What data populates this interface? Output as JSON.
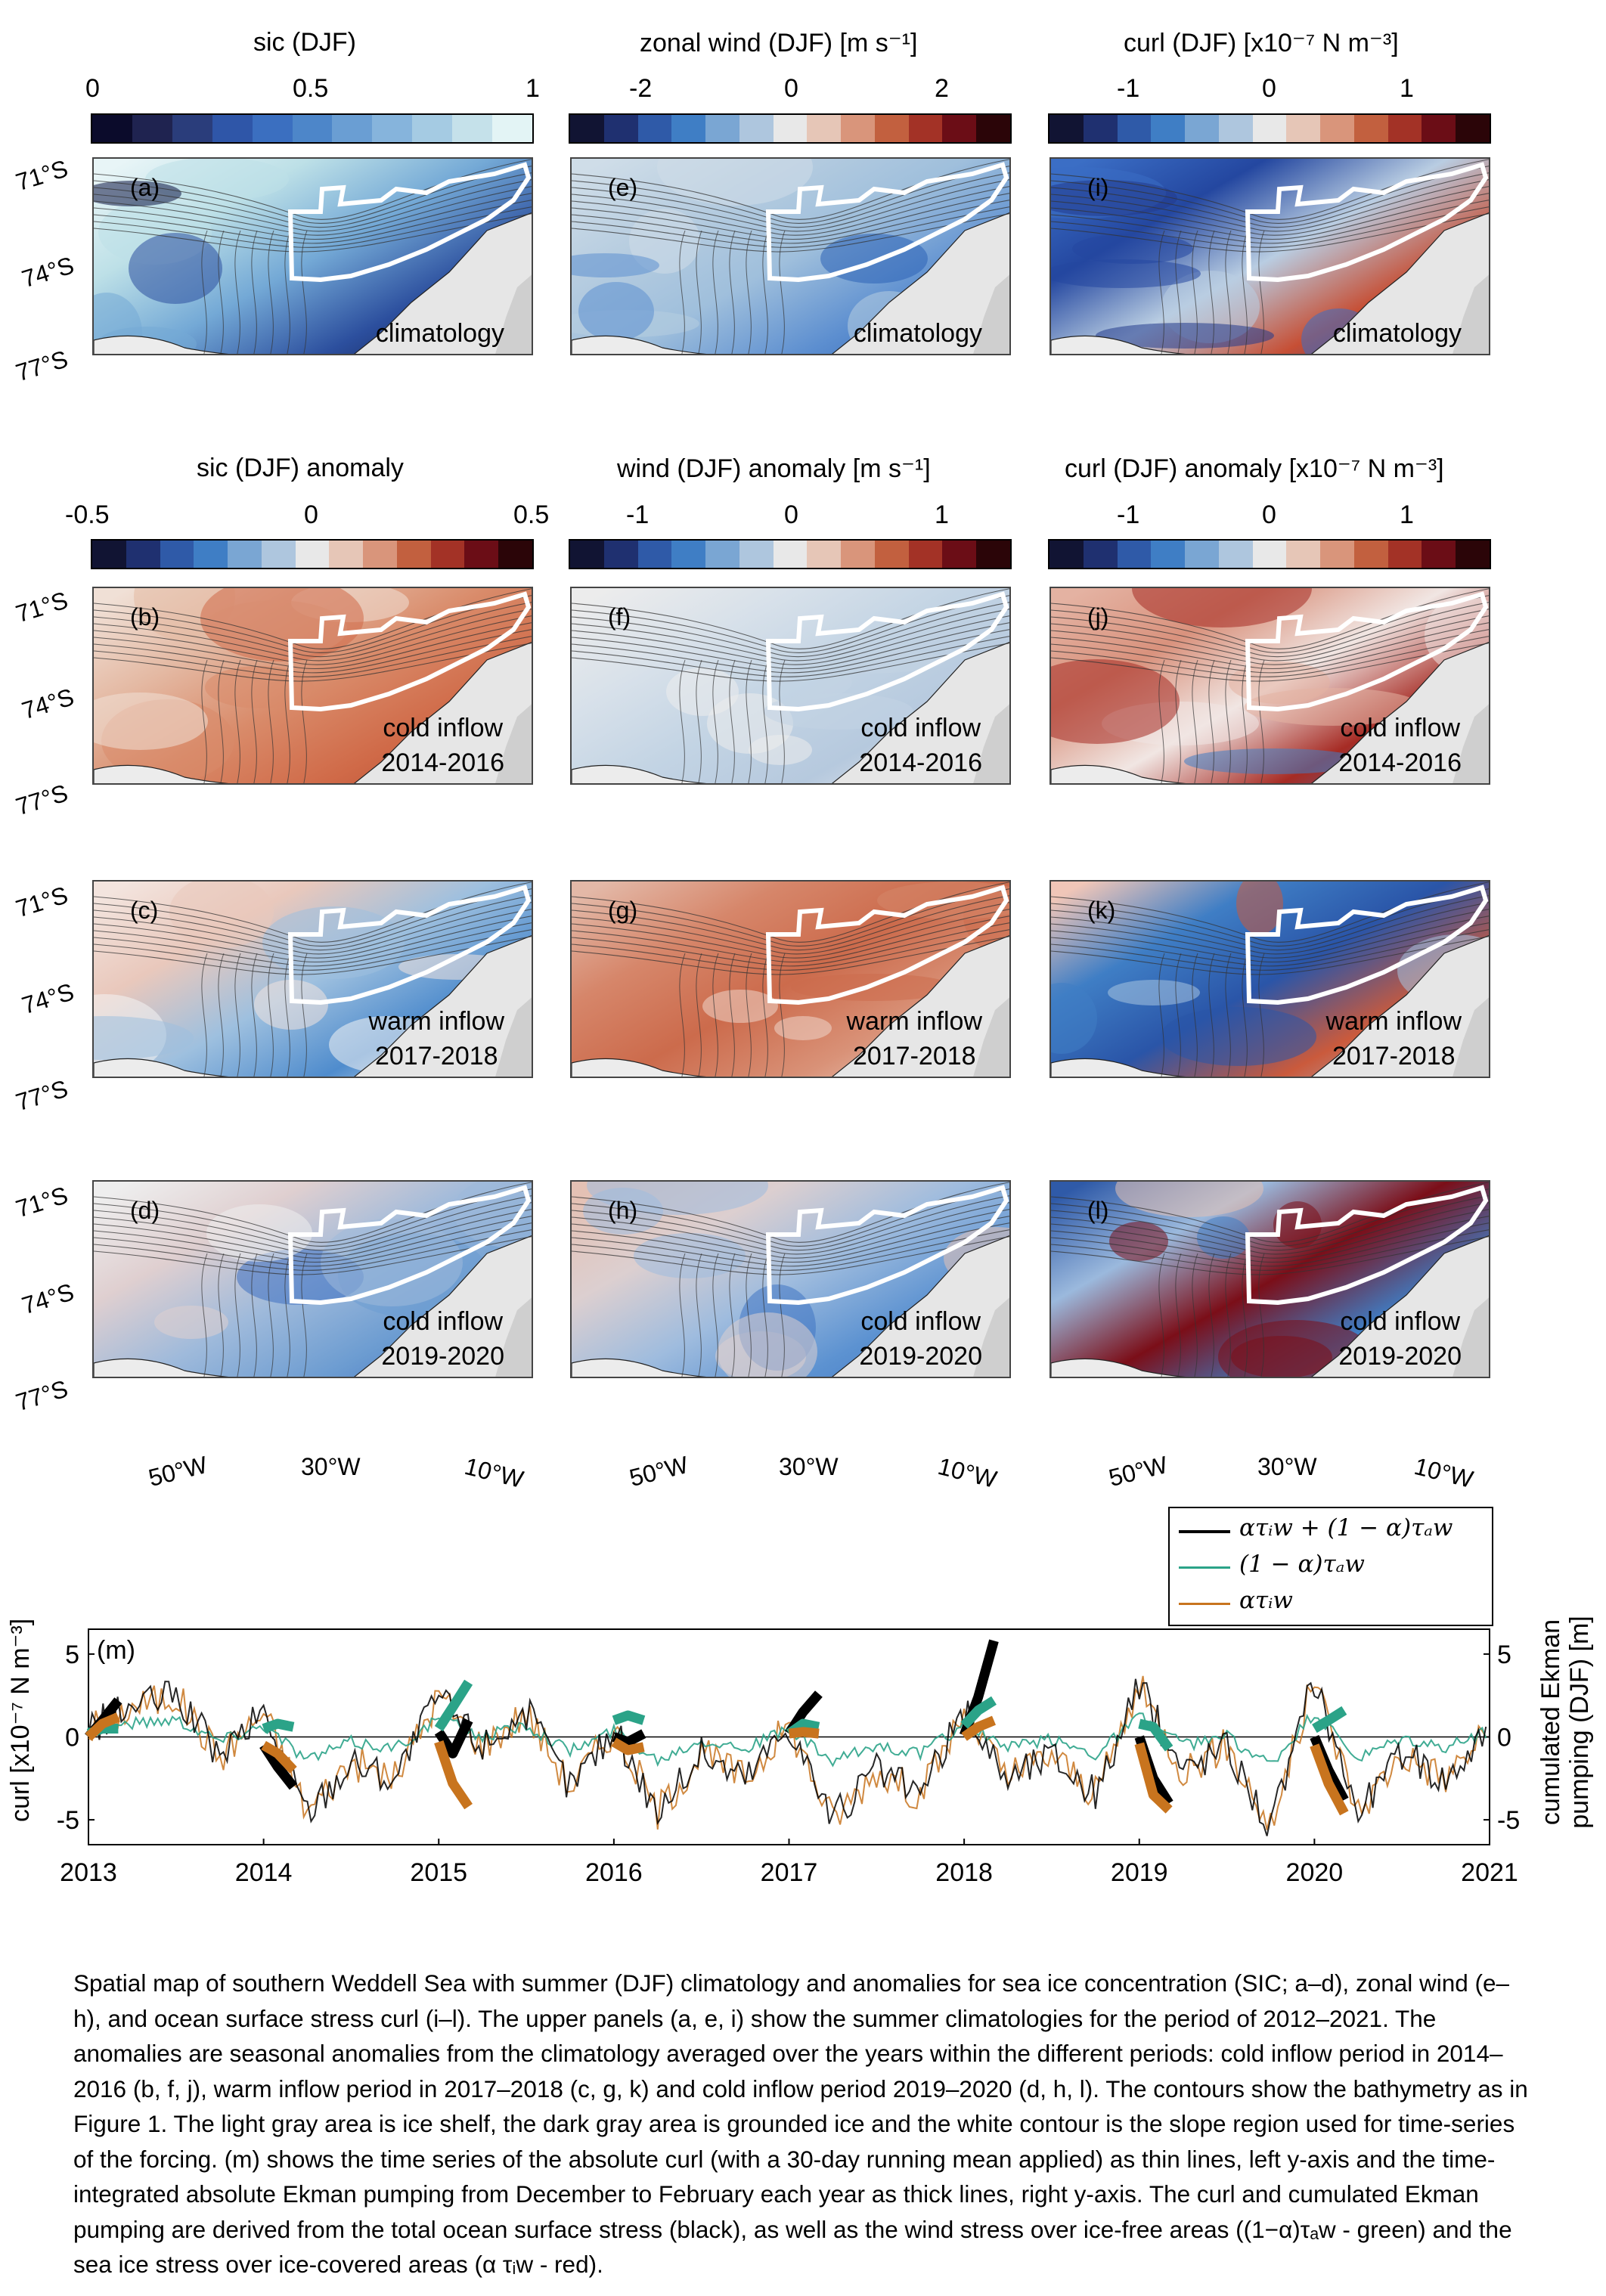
{
  "columns": [
    {
      "clim_title": "sic (DJF)",
      "clim_ticks": [
        "0",
        "0.5",
        "1"
      ],
      "anom_title": "sic (DJF) anomaly",
      "anom_ticks": [
        "-0.5",
        "0",
        "0.5"
      ]
    },
    {
      "clim_title": "zonal wind (DJF) [m s⁻¹]",
      "clim_ticks": [
        "-2",
        "0",
        "2"
      ],
      "anom_title": "wind (DJF) anomaly [m s⁻¹]",
      "anom_ticks": [
        "-1",
        "0",
        "1"
      ]
    },
    {
      "clim_title": "curl (DJF) [x10⁻⁷ N m⁻³]",
      "clim_ticks": [
        "-1",
        "0",
        "1"
      ],
      "anom_title": "curl (DJF) anomaly [x10⁻⁷ N m⁻³]",
      "anom_ticks": [
        "-1",
        "0",
        "1"
      ]
    }
  ],
  "colormaps": {
    "sic": [
      "#0b0b2b",
      "#1f2350",
      "#2a3d7b",
      "#2f56a8",
      "#3b6fc0",
      "#4d86c9",
      "#6a9ed3",
      "#86b4dc",
      "#a5cbe3",
      "#c5e1ea",
      "#e3f4f5"
    ],
    "diverging": [
      "#111433",
      "#1f3070",
      "#2f5aa8",
      "#3f7ec5",
      "#7aa6d3",
      "#aec6de",
      "#e8e8e8",
      "#e6c6b7",
      "#d9957b",
      "#c2603f",
      "#a33226",
      "#6b0d16",
      "#2b0508"
    ]
  },
  "panels": [
    [
      "(a)",
      "(b)",
      "(c)",
      "(d)"
    ],
    [
      "(e)",
      "(f)",
      "(g)",
      "(h)"
    ],
    [
      "(i)",
      "(j)",
      "(k)",
      "(l)"
    ]
  ],
  "row_annotations": [
    [
      "climatology"
    ],
    [
      "cold inflow",
      "2014-2016"
    ],
    [
      "warm inflow",
      "2017-2018"
    ],
    [
      "cold inflow",
      "2019-2020"
    ]
  ],
  "lat_labels": [
    "71°S",
    "74°S",
    "77°S"
  ],
  "lon_labels": [
    "50°W",
    "30°W",
    "10°W"
  ],
  "timeseries": {
    "panel_label": "(m)",
    "left_ylabel": "curl [x10⁻⁷ N m⁻³]",
    "right_ylabel": "cumulated Ekman pumping (DJF) [m]",
    "left_yticks": [
      "5",
      "0",
      "-5"
    ],
    "right_yticks": [
      "5",
      "0",
      "-5"
    ],
    "xticks": [
      "2013",
      "2014",
      "2015",
      "2016",
      "2017",
      "2018",
      "2019",
      "2020",
      "2021"
    ],
    "legend": [
      {
        "label": "ατᵢw + (1 − α)τₐw",
        "color": "#000000"
      },
      {
        "label": "(1 − α)τₐw",
        "color": "#2ba388"
      },
      {
        "label": "ατᵢw",
        "color": "#c8741e"
      }
    ]
  },
  "chart_data": {
    "type": "line",
    "xlim": [
      2013,
      2021
    ],
    "ylim": [
      -6.5,
      6.5
    ],
    "grid": false,
    "legend_position": "top-right, above plot",
    "series": [
      {
        "name": "ατᵢw + (1 − α)τₐw",
        "kind": "cumulated Ekman pumping (thick)",
        "x": [
          2013.0,
          2013.08,
          2013.17,
          2014.0,
          2014.08,
          2014.17,
          2015.0,
          2015.08,
          2015.17,
          2016.0,
          2016.08,
          2016.17,
          2017.0,
          2017.08,
          2017.17,
          2018.0,
          2018.08,
          2018.17,
          2019.0,
          2019.08,
          2019.17,
          2020.0,
          2020.08,
          2020.17
        ],
        "y": [
          0.0,
          1.0,
          2.2,
          -0.5,
          -1.8,
          -3.0,
          0.3,
          -1.0,
          1.0,
          0.0,
          -0.3,
          0.2,
          0.2,
          1.5,
          2.6,
          0.1,
          2.4,
          5.8,
          0.0,
          -2.5,
          -4.0,
          0.0,
          -2.0,
          -3.8
        ]
      },
      {
        "name": "(1 − α)τₐw",
        "kind": "cumulated Ekman pumping (thick)",
        "x": [
          2013.0,
          2013.08,
          2013.17,
          2014.0,
          2014.08,
          2014.17,
          2015.0,
          2015.08,
          2015.17,
          2016.0,
          2016.08,
          2016.17,
          2017.0,
          2017.08,
          2017.17,
          2018.0,
          2018.08,
          2018.17,
          2019.0,
          2019.08,
          2019.17,
          2020.0,
          2020.08,
          2020.17
        ],
        "y": [
          0.2,
          0.5,
          0.5,
          0.5,
          0.8,
          0.6,
          0.5,
          1.8,
          3.3,
          1.0,
          1.3,
          1.0,
          0.2,
          0.8,
          0.6,
          0.7,
          1.6,
          2.2,
          0.8,
          0.6,
          -0.7,
          0.5,
          1.0,
          1.6
        ]
      },
      {
        "name": "ατᵢw",
        "kind": "cumulated Ekman pumping (thick)",
        "x": [
          2013.0,
          2013.08,
          2013.17,
          2014.0,
          2014.08,
          2014.17,
          2015.0,
          2015.08,
          2015.17,
          2016.0,
          2016.08,
          2016.17,
          2017.0,
          2017.08,
          2017.17,
          2018.0,
          2018.08,
          2018.17,
          2019.0,
          2019.08,
          2019.17,
          2020.0,
          2020.08,
          2020.17
        ],
        "y": [
          0.0,
          0.8,
          1.2,
          -0.5,
          -1.0,
          -2.0,
          -0.3,
          -2.8,
          -4.2,
          -0.3,
          -0.8,
          -0.6,
          0.2,
          0.3,
          0.2,
          0.0,
          0.6,
          1.0,
          -0.4,
          -3.5,
          -4.4,
          -0.5,
          -2.8,
          -4.6
        ]
      },
      {
        "name": "curl (total, 30-day mean)",
        "kind": "thin",
        "x": [
          2013.0,
          2013.25,
          2013.5,
          2013.75,
          2014.0,
          2014.25,
          2014.5,
          2014.75,
          2015.0,
          2015.25,
          2015.5,
          2015.75,
          2016.0,
          2016.25,
          2016.5,
          2016.75,
          2017.0,
          2017.25,
          2017.5,
          2017.75,
          2018.0,
          2018.25,
          2018.5,
          2018.75,
          2019.0,
          2019.25,
          2019.5,
          2019.75,
          2020.0,
          2020.25,
          2020.5,
          2020.75,
          2021.0
        ],
        "y": [
          0.5,
          1.8,
          2.5,
          -1.2,
          1.5,
          -4.5,
          -1.5,
          -2.5,
          2.5,
          -0.5,
          1.5,
          -3.0,
          0.5,
          -4.5,
          -1.0,
          -2.5,
          0.8,
          -5.0,
          -2.0,
          -3.5,
          1.5,
          -2.5,
          -1.0,
          -3.5,
          3.0,
          -2.0,
          -0.5,
          -5.5,
          3.5,
          -4.5,
          -1.0,
          -2.5,
          0.5
        ]
      }
    ]
  },
  "caption": "Spatial map of southern Weddell Sea with summer (DJF) climatology and anomalies for sea ice concentration (SIC; a–d), zonal wind (e–h), and ocean surface stress curl (i–l). The upper panels (a, e, i) show the summer climatologies for the period of 2012–2021. The anomalies are seasonal anomalies from the climatology averaged over the years within the different periods: cold inflow period in 2014–2016 (b, f, j), warm inflow period in 2017–2018 (c, g, k) and cold inflow period 2019–2020 (d, h, l). The contours show the bathymetry as in Figure 1. The light gray area is ice shelf, the dark gray area is grounded ice and the white contour is the slope region used for time-series of the forcing. (m) shows the time series of the absolute curl (with a 30-day running mean applied) as thin lines, left y-axis and the time-integrated absolute Ekman pumping from December to February each year as thick lines, right y-axis. The curl and cumulated Ekman pumping are derived from the total ocean surface stress (black), as well as the wind stress over ice-free areas ((1−α)τₐw - green) and the sea ice stress over ice-covered areas (α τᵢw - red)."
}
